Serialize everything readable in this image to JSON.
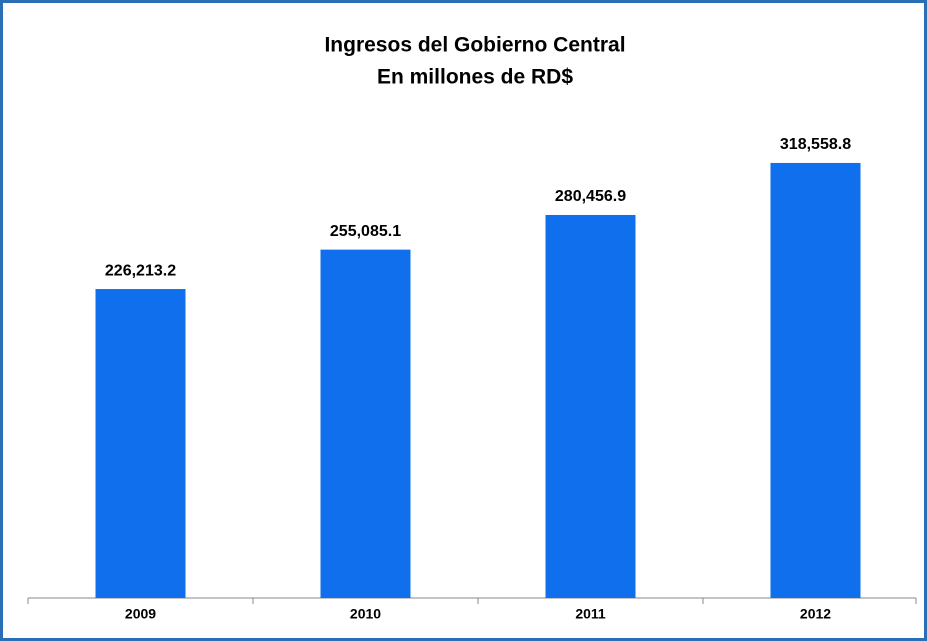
{
  "chart_data": {
    "type": "bar",
    "title": "Ingresos del Gobierno Central",
    "subtitle": "En millones de RD$",
    "categories": [
      "2009",
      "2010",
      "2011",
      "2012"
    ],
    "values": [
      226213.2,
      255085.1,
      280456.9,
      318558.8
    ],
    "value_labels": [
      "226,213.2",
      "255,085.1",
      "280,456.9",
      "318,558.8"
    ],
    "color": "#0f6fec",
    "ylim": [
      0,
      350000
    ]
  }
}
